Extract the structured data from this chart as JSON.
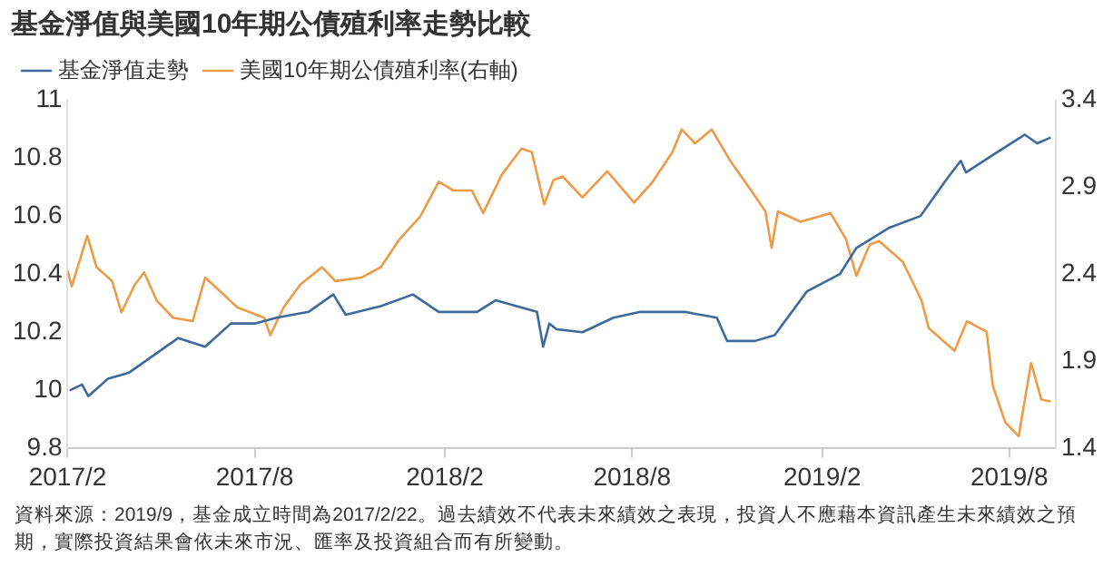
{
  "chart_data": {
    "type": "line",
    "title": "基金淨值與美國10年期公債殖利率走勢比較",
    "annotations": [
      "資料來源：2019/9，基金成立時間為2017/2/22。過去績效不代表未來績效之表現，投資人不應藉本資訊產生未來績效之預期，實際投資結果會依未來市況、匯率及投資組合而有所變動。"
    ],
    "legend": "top left",
    "grid": false,
    "marker": "none",
    "line_style": "solid",
    "xlim": [
      "2017-02-01",
      "2019-09-15"
    ],
    "xticks": [
      {
        "value": "2017-02",
        "label": "2017/2"
      },
      {
        "value": "2017-08",
        "label": "2017/8"
      },
      {
        "value": "2018-02",
        "label": "2018/2"
      },
      {
        "value": "2018-08",
        "label": "2018/8"
      },
      {
        "value": "2019-02",
        "label": "2019/2"
      },
      {
        "value": "2019-08",
        "label": "2019/8"
      }
    ],
    "ylim": [
      9.8,
      11
    ],
    "yticks": [
      9.8,
      10,
      10.2,
      10.4,
      10.6,
      10.8,
      11
    ],
    "y2lim": [
      1.4,
      3.4
    ],
    "y2ticks": [
      1.4,
      1.9,
      2.4,
      2.9,
      3.4
    ],
    "series": [
      {
        "name": "基金淨值走勢",
        "color": "#3e6a9b",
        "x": [
          "2017-02-03",
          "2017-02-15",
          "2017-02-21",
          "2017-03-12",
          "2017-04-01",
          "2017-04-25",
          "2017-05-19",
          "2017-06-14",
          "2017-07-09",
          "2017-08-01",
          "2017-08-22",
          "2017-09-22",
          "2017-10-16",
          "2017-10-28",
          "2017-12-01",
          "2018-01-01",
          "2018-01-26",
          "2018-03-04",
          "2018-03-22",
          "2018-05-01",
          "2018-05-07",
          "2018-05-13",
          "2018-05-20",
          "2018-06-14",
          "2018-07-14",
          "2018-08-09",
          "2018-09-21",
          "2018-10-22",
          "2018-11-01",
          "2018-11-28",
          "2018-12-17",
          "2019-01-17",
          "2019-02-18",
          "2019-03-06",
          "2019-04-07",
          "2019-05-07",
          "2019-06-02",
          "2019-06-15",
          "2019-06-20",
          "2019-07-16",
          "2019-08-16",
          "2019-08-28",
          "2019-09-10"
        ],
        "values": [
          10.0,
          10.02,
          9.98,
          10.04,
          10.06,
          10.12,
          10.18,
          10.15,
          10.23,
          10.23,
          10.25,
          10.27,
          10.33,
          10.26,
          10.29,
          10.33,
          10.27,
          10.27,
          10.31,
          10.27,
          10.15,
          10.23,
          10.21,
          10.2,
          10.25,
          10.27,
          10.27,
          10.25,
          10.17,
          10.17,
          10.19,
          10.34,
          10.4,
          10.49,
          10.56,
          10.6,
          10.73,
          10.79,
          10.75,
          10.81,
          10.88,
          10.85,
          10.87
        ]
      },
      {
        "name": "美國10年期公債殖利率(右軸)",
        "color": "#ed9b47",
        "axis": "y2",
        "x": [
          "2017-02-01",
          "2017-02-05",
          "2017-02-20",
          "2017-03-01",
          "2017-03-16",
          "2017-03-25",
          "2017-04-07",
          "2017-04-16",
          "2017-04-28",
          "2017-05-14",
          "2017-06-02",
          "2017-06-14",
          "2017-06-27",
          "2017-07-15",
          "2017-08-10",
          "2017-08-16",
          "2017-08-29",
          "2017-09-14",
          "2017-10-05",
          "2017-10-18",
          "2017-11-12",
          "2017-12-01",
          "2017-12-19",
          "2018-01-08",
          "2018-01-26",
          "2018-02-09",
          "2018-02-27",
          "2018-03-10",
          "2018-03-28",
          "2018-04-16",
          "2018-04-26",
          "2018-05-08",
          "2018-05-17",
          "2018-05-26",
          "2018-06-14",
          "2018-07-08",
          "2018-08-03",
          "2018-08-21",
          "2018-09-09",
          "2018-09-18",
          "2018-10-01",
          "2018-10-17",
          "2018-11-04",
          "2018-11-23",
          "2018-12-08",
          "2018-12-14",
          "2018-12-20",
          "2019-01-11",
          "2019-02-09",
          "2019-02-24",
          "2019-03-06",
          "2019-03-19",
          "2019-03-28",
          "2019-04-20",
          "2019-05-08",
          "2019-05-15",
          "2019-06-09",
          "2019-06-21",
          "2019-07-10",
          "2019-07-16",
          "2019-07-28",
          "2019-08-10",
          "2019-08-22",
          "2019-09-01",
          "2019-09-10"
        ],
        "values": [
          2.42,
          2.33,
          2.62,
          2.44,
          2.36,
          2.18,
          2.34,
          2.41,
          2.25,
          2.15,
          2.13,
          2.38,
          2.31,
          2.21,
          2.15,
          2.05,
          2.21,
          2.34,
          2.44,
          2.36,
          2.38,
          2.44,
          2.6,
          2.73,
          2.93,
          2.88,
          2.88,
          2.75,
          2.97,
          3.12,
          3.1,
          2.8,
          2.94,
          2.96,
          2.84,
          2.99,
          2.81,
          2.93,
          3.1,
          3.23,
          3.15,
          3.23,
          3.05,
          2.89,
          2.76,
          2.55,
          2.76,
          2.7,
          2.75,
          2.6,
          2.39,
          2.57,
          2.59,
          2.47,
          2.25,
          2.09,
          1.96,
          2.13,
          2.07,
          1.76,
          1.55,
          1.47,
          1.89,
          1.68,
          1.67
        ]
      }
    ]
  }
}
